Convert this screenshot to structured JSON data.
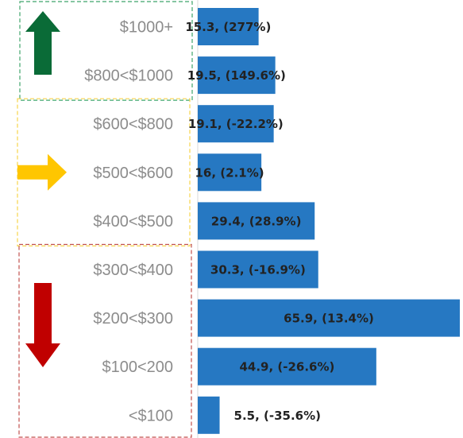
{
  "chart_data": {
    "type": "bar",
    "orientation": "horizontal",
    "categories": [
      "$1000+",
      "$800<$1000",
      "$600<$800",
      "$500<$600",
      "$400<$500",
      "$300<$400",
      "$200<$300",
      "$100<200",
      "<$100"
    ],
    "values": [
      15.3,
      19.5,
      19.1,
      16,
      29.4,
      30.3,
      65.9,
      44.9,
      5.5
    ],
    "data_labels": [
      "15.3, (277%)",
      "19.5, (149.6%)",
      "19.1, (-22.2%)",
      "16, (2.1%)",
      "29.4, (28.9%)",
      "30.3, (-16.9%)",
      "65.9, (13.4%)",
      "44.9, (-26.6%)",
      "5.5, (-35.6%)"
    ],
    "xlim": [
      0,
      65.9
    ],
    "grid": false,
    "legend": "none",
    "groups": [
      {
        "indicator": "up-arrow",
        "color": "#0a6b37",
        "box_color": "#3fa56b",
        "categories": [
          "$1000+",
          "$800<$1000"
        ]
      },
      {
        "indicator": "right-arrow",
        "color": "#ffc600",
        "box_color": "#f7d44a",
        "categories": [
          "$600<$800",
          "$500<$600",
          "$400<$500"
        ]
      },
      {
        "indicator": "down-arrow",
        "color": "#c00000",
        "box_color": "#c0504d",
        "categories": [
          "$300<$400",
          "$200<$300",
          "$100<200",
          "<$100"
        ]
      }
    ]
  },
  "colors": {
    "bar": "#2678c2",
    "category_label": "#8c8c8c",
    "data_label": "#222222",
    "axis_line": "#d9d9d9"
  }
}
